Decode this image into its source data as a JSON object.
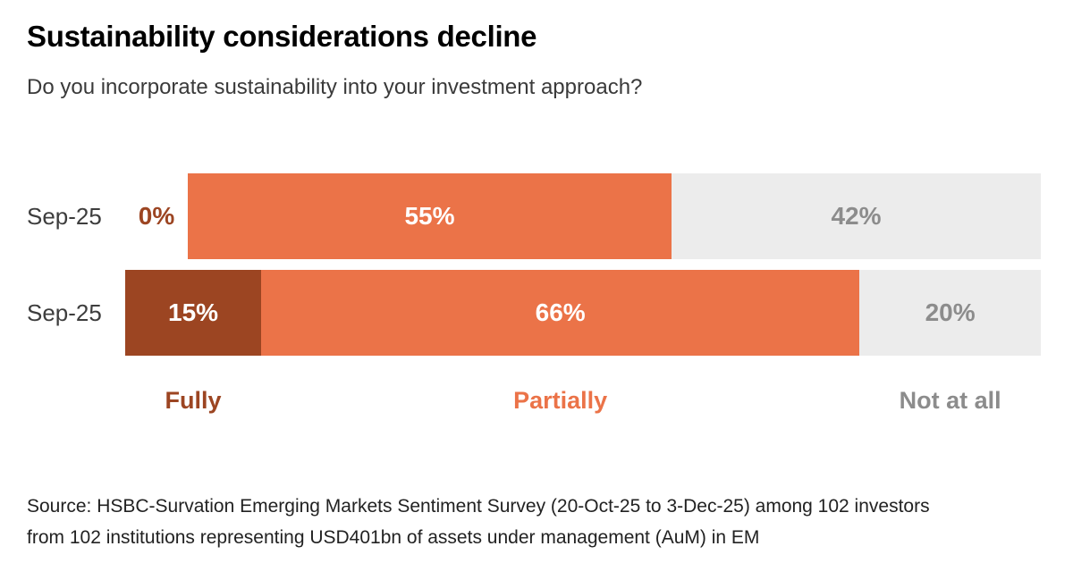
{
  "header": {
    "title": "Sustainability considerations decline",
    "subtitle": "Do you incorporate sustainability into your investment approach?"
  },
  "chart_data": {
    "type": "bar",
    "orientation": "horizontal",
    "stacked": true,
    "unit": "%",
    "categories": [
      "Sep-25",
      "Sep-25"
    ],
    "series": [
      {
        "name": "Fully",
        "values": [
          0,
          15
        ],
        "color": "#9C4522",
        "label_color": "#FFFFFF",
        "legend_color": "#9C4522"
      },
      {
        "name": "Partially",
        "values": [
          55,
          66
        ],
        "color": "#EB7348",
        "label_color": "#FFFFFF",
        "legend_color": "#EB7348"
      },
      {
        "name": "Not at all",
        "values": [
          42,
          20
        ],
        "color": "#ECECEC",
        "label_color": "#8C8C8C",
        "legend_color": "#8C8C8C"
      }
    ],
    "data_labels": [
      [
        "0%",
        "55%",
        "42%"
      ],
      [
        "15%",
        "66%",
        "20%"
      ]
    ],
    "legend": [
      "Fully",
      "Partially",
      "Not at all"
    ],
    "legend_position": "bottom",
    "grid": false,
    "axes": "none",
    "xlim": [
      0,
      101
    ]
  },
  "footer": {
    "source_line1": "Source: HSBC-Survation Emerging Markets Sentiment Survey (20-Oct-25 to 3-Dec-25) among 102 investors",
    "source_line2": "from 102 institutions representing USD401bn of assets under management (AuM) in EM"
  },
  "colors": {
    "background": "#FFFFFF",
    "title_text": "#000000",
    "subtitle_text": "#3A3A3A",
    "category_label_text": "#3D3D3D",
    "source_text": "#222222"
  }
}
